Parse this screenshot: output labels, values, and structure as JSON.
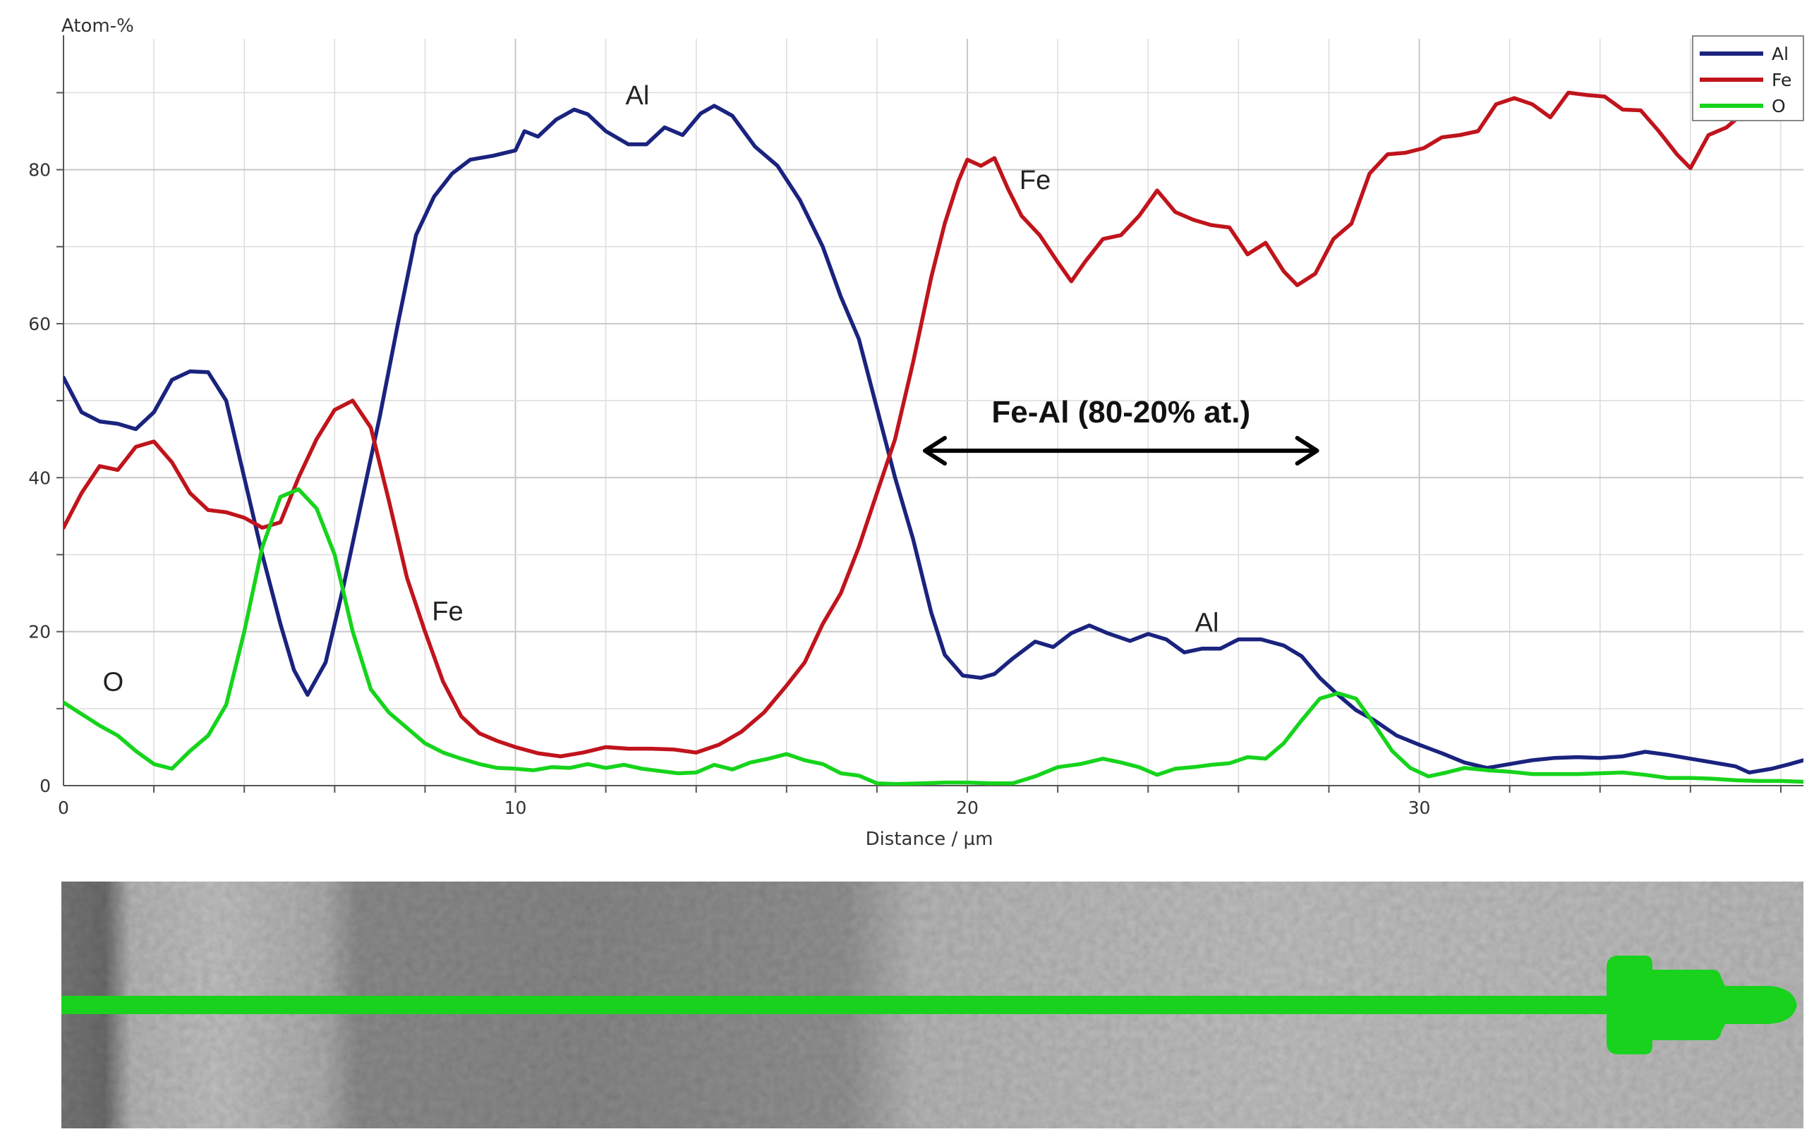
{
  "chart_data": {
    "type": "line",
    "ylabel": "Atom-%",
    "xlabel": "Distance / µm",
    "xlim": [
      0,
      38.5
    ],
    "ylim": [
      0,
      97
    ],
    "x_ticks": [
      0,
      10,
      20,
      30
    ],
    "y_ticks": [
      0,
      20,
      40,
      60,
      80
    ],
    "grid": true,
    "legend_position": "top-right",
    "series": [
      {
        "name": "Al",
        "color": "#1a237e",
        "points": [
          [
            0,
            53
          ],
          [
            0.4,
            48.5
          ],
          [
            0.8,
            47.3
          ],
          [
            1.2,
            47
          ],
          [
            1.6,
            46.3
          ],
          [
            2,
            48.5
          ],
          [
            2.4,
            52.7
          ],
          [
            2.8,
            53.8
          ],
          [
            3.2,
            53.7
          ],
          [
            3.6,
            50
          ],
          [
            4,
            40
          ],
          [
            4.4,
            30
          ],
          [
            4.8,
            21
          ],
          [
            5.1,
            15
          ],
          [
            5.4,
            11.8
          ],
          [
            5.8,
            16
          ],
          [
            6.2,
            26
          ],
          [
            6.6,
            37
          ],
          [
            7,
            48
          ],
          [
            7.4,
            60
          ],
          [
            7.8,
            71.5
          ],
          [
            8.2,
            76.5
          ],
          [
            8.6,
            79.5
          ],
          [
            9,
            81.3
          ],
          [
            9.5,
            81.8
          ],
          [
            10,
            82.5
          ],
          [
            10.2,
            85
          ],
          [
            10.5,
            84.3
          ],
          [
            10.9,
            86.5
          ],
          [
            11.3,
            87.8
          ],
          [
            11.6,
            87.2
          ],
          [
            12,
            85
          ],
          [
            12.5,
            83.3
          ],
          [
            12.9,
            83.3
          ],
          [
            13.3,
            85.5
          ],
          [
            13.7,
            84.5
          ],
          [
            14.1,
            87.3
          ],
          [
            14.4,
            88.3
          ],
          [
            14.8,
            87
          ],
          [
            15.3,
            83
          ],
          [
            15.8,
            80.5
          ],
          [
            16.3,
            76
          ],
          [
            16.8,
            70
          ],
          [
            17.2,
            63.5
          ],
          [
            17.6,
            58
          ],
          [
            18,
            49
          ],
          [
            18.4,
            40
          ],
          [
            18.8,
            32
          ],
          [
            19.2,
            22.5
          ],
          [
            19.5,
            17
          ],
          [
            19.9,
            14.3
          ],
          [
            20.3,
            14
          ],
          [
            20.6,
            14.5
          ],
          [
            21,
            16.5
          ],
          [
            21.5,
            18.7
          ],
          [
            21.9,
            18
          ],
          [
            22.3,
            19.8
          ],
          [
            22.7,
            20.8
          ],
          [
            23.1,
            19.8
          ],
          [
            23.6,
            18.8
          ],
          [
            24,
            19.7
          ],
          [
            24.4,
            19
          ],
          [
            24.8,
            17.3
          ],
          [
            25.2,
            17.8
          ],
          [
            25.6,
            17.8
          ],
          [
            26,
            19
          ],
          [
            26.5,
            19
          ],
          [
            27,
            18.2
          ],
          [
            27.4,
            16.8
          ],
          [
            27.8,
            14
          ],
          [
            28.2,
            11.8
          ],
          [
            28.6,
            9.8
          ],
          [
            29,
            8.5
          ],
          [
            29.5,
            6.5
          ],
          [
            30,
            5.3
          ],
          [
            30.5,
            4.2
          ],
          [
            31,
            3
          ],
          [
            31.5,
            2.3
          ],
          [
            32,
            2.8
          ],
          [
            32.5,
            3.3
          ],
          [
            33,
            3.6
          ],
          [
            33.5,
            3.7
          ],
          [
            34,
            3.6
          ],
          [
            34.5,
            3.8
          ],
          [
            35,
            4.4
          ],
          [
            35.5,
            4
          ],
          [
            36,
            3.5
          ],
          [
            36.5,
            3
          ],
          [
            37,
            2.5
          ],
          [
            37.3,
            1.7
          ],
          [
            37.8,
            2.2
          ],
          [
            38.2,
            2.8
          ],
          [
            38.5,
            3.3
          ]
        ]
      },
      {
        "name": "Fe",
        "color": "#c0141c",
        "points": [
          [
            0,
            33.5
          ],
          [
            0.4,
            38
          ],
          [
            0.8,
            41.5
          ],
          [
            1.2,
            41
          ],
          [
            1.6,
            44
          ],
          [
            2,
            44.7
          ],
          [
            2.4,
            42
          ],
          [
            2.8,
            38
          ],
          [
            3.2,
            35.8
          ],
          [
            3.6,
            35.5
          ],
          [
            4,
            34.8
          ],
          [
            4.4,
            33.5
          ],
          [
            4.8,
            34.2
          ],
          [
            5.2,
            40
          ],
          [
            5.6,
            45
          ],
          [
            6,
            48.8
          ],
          [
            6.4,
            50
          ],
          [
            6.8,
            46.5
          ],
          [
            7.2,
            37
          ],
          [
            7.6,
            27
          ],
          [
            8,
            20
          ],
          [
            8.4,
            13.5
          ],
          [
            8.8,
            9
          ],
          [
            9.2,
            6.8
          ],
          [
            9.6,
            5.8
          ],
          [
            10,
            5
          ],
          [
            10.5,
            4.2
          ],
          [
            11,
            3.8
          ],
          [
            11.5,
            4.3
          ],
          [
            12,
            5
          ],
          [
            12.5,
            4.8
          ],
          [
            13,
            4.8
          ],
          [
            13.5,
            4.7
          ],
          [
            14,
            4.3
          ],
          [
            14.5,
            5.3
          ],
          [
            15,
            7
          ],
          [
            15.5,
            9.5
          ],
          [
            16,
            13
          ],
          [
            16.4,
            16
          ],
          [
            16.8,
            21
          ],
          [
            17.2,
            25
          ],
          [
            17.6,
            31
          ],
          [
            18,
            38
          ],
          [
            18.4,
            45
          ],
          [
            18.8,
            55
          ],
          [
            19.2,
            66
          ],
          [
            19.5,
            73
          ],
          [
            19.8,
            78.5
          ],
          [
            20,
            81.3
          ],
          [
            20.3,
            80.5
          ],
          [
            20.6,
            81.5
          ],
          [
            20.9,
            77.5
          ],
          [
            21.2,
            74
          ],
          [
            21.6,
            71.5
          ],
          [
            22,
            68
          ],
          [
            22.3,
            65.5
          ],
          [
            22.6,
            68
          ],
          [
            23,
            71
          ],
          [
            23.4,
            71.5
          ],
          [
            23.8,
            74
          ],
          [
            24.2,
            77.3
          ],
          [
            24.6,
            74.5
          ],
          [
            25,
            73.5
          ],
          [
            25.4,
            72.8
          ],
          [
            25.8,
            72.5
          ],
          [
            26.2,
            69
          ],
          [
            26.6,
            70.5
          ],
          [
            27,
            66.8
          ],
          [
            27.3,
            65
          ],
          [
            27.7,
            66.5
          ],
          [
            28.1,
            71
          ],
          [
            28.5,
            73
          ],
          [
            28.9,
            79.5
          ],
          [
            29.3,
            82
          ],
          [
            29.7,
            82.2
          ],
          [
            30.1,
            82.8
          ],
          [
            30.5,
            84.2
          ],
          [
            30.9,
            84.5
          ],
          [
            31.3,
            85
          ],
          [
            31.7,
            88.5
          ],
          [
            32.1,
            89.3
          ],
          [
            32.5,
            88.5
          ],
          [
            32.9,
            86.8
          ],
          [
            33.3,
            90
          ],
          [
            33.7,
            89.7
          ],
          [
            34.1,
            89.5
          ],
          [
            34.5,
            87.8
          ],
          [
            34.9,
            87.7
          ],
          [
            35.3,
            85
          ],
          [
            35.7,
            82
          ],
          [
            36,
            80.2
          ],
          [
            36.4,
            84.5
          ],
          [
            36.8,
            85.5
          ],
          [
            37.2,
            87.5
          ],
          [
            37.5,
            88.5
          ]
        ]
      },
      {
        "name": "O",
        "color": "#16d41c",
        "points": [
          [
            0,
            10.8
          ],
          [
            0.4,
            9.3
          ],
          [
            0.8,
            7.8
          ],
          [
            1.2,
            6.5
          ],
          [
            1.6,
            4.5
          ],
          [
            2,
            2.8
          ],
          [
            2.4,
            2.2
          ],
          [
            2.8,
            4.5
          ],
          [
            3.2,
            6.5
          ],
          [
            3.6,
            10.5
          ],
          [
            4,
            20
          ],
          [
            4.4,
            31
          ],
          [
            4.8,
            37.5
          ],
          [
            5.2,
            38.5
          ],
          [
            5.6,
            36
          ],
          [
            6,
            30
          ],
          [
            6.4,
            20
          ],
          [
            6.8,
            12.5
          ],
          [
            7.2,
            9.5
          ],
          [
            7.6,
            7.5
          ],
          [
            8,
            5.5
          ],
          [
            8.4,
            4.3
          ],
          [
            8.8,
            3.5
          ],
          [
            9.2,
            2.8
          ],
          [
            9.6,
            2.3
          ],
          [
            10,
            2.2
          ],
          [
            10.4,
            2
          ],
          [
            10.8,
            2.4
          ],
          [
            11.2,
            2.3
          ],
          [
            11.6,
            2.8
          ],
          [
            12,
            2.3
          ],
          [
            12.4,
            2.7
          ],
          [
            12.8,
            2.2
          ],
          [
            13.2,
            1.9
          ],
          [
            13.6,
            1.6
          ],
          [
            14,
            1.7
          ],
          [
            14.4,
            2.7
          ],
          [
            14.8,
            2.1
          ],
          [
            15.2,
            3
          ],
          [
            15.6,
            3.5
          ],
          [
            16,
            4.1
          ],
          [
            16.4,
            3.3
          ],
          [
            16.8,
            2.8
          ],
          [
            17.2,
            1.6
          ],
          [
            17.6,
            1.3
          ],
          [
            18,
            0.3
          ],
          [
            18.4,
            0.2
          ],
          [
            19,
            0.3
          ],
          [
            19.5,
            0.4
          ],
          [
            20,
            0.4
          ],
          [
            20.5,
            0.3
          ],
          [
            21,
            0.3
          ],
          [
            21.5,
            1.2
          ],
          [
            22,
            2.4
          ],
          [
            22.5,
            2.8
          ],
          [
            23,
            3.5
          ],
          [
            23.4,
            3
          ],
          [
            23.8,
            2.4
          ],
          [
            24.2,
            1.4
          ],
          [
            24.6,
            2.2
          ],
          [
            25,
            2.4
          ],
          [
            25.4,
            2.7
          ],
          [
            25.8,
            2.9
          ],
          [
            26.2,
            3.7
          ],
          [
            26.6,
            3.5
          ],
          [
            27,
            5.5
          ],
          [
            27.4,
            8.5
          ],
          [
            27.8,
            11.3
          ],
          [
            28.2,
            12
          ],
          [
            28.6,
            11.3
          ],
          [
            29,
            8
          ],
          [
            29.4,
            4.5
          ],
          [
            29.8,
            2.3
          ],
          [
            30.2,
            1.2
          ],
          [
            30.6,
            1.7
          ],
          [
            31,
            2.3
          ],
          [
            31.5,
            2
          ],
          [
            32,
            1.8
          ],
          [
            32.5,
            1.5
          ],
          [
            33,
            1.5
          ],
          [
            33.5,
            1.5
          ],
          [
            34,
            1.6
          ],
          [
            34.5,
            1.7
          ],
          [
            35,
            1.4
          ],
          [
            35.5,
            1
          ],
          [
            36,
            1
          ],
          [
            36.5,
            0.9
          ],
          [
            37,
            0.7
          ],
          [
            37.5,
            0.6
          ],
          [
            38,
            0.6
          ],
          [
            38.5,
            0.5
          ]
        ]
      }
    ],
    "annotations": [
      {
        "text": "Al",
        "x": 12.7,
        "y": 88.5
      },
      {
        "text": "Fe",
        "x": 21.5,
        "y": 77.5
      },
      {
        "text": "Fe",
        "x": 8.5,
        "y": 21.5
      },
      {
        "text": "Al",
        "x": 25.3,
        "y": 20
      },
      {
        "text": "O",
        "x": 1.1,
        "y": 12.3
      }
    ],
    "range_annotation": {
      "text": "Fe-Al (80-20% at.)",
      "x_start": 19,
      "x_end": 27.8,
      "y": 43.5
    }
  },
  "micrograph": {
    "linescan_color": "#18d21e"
  }
}
